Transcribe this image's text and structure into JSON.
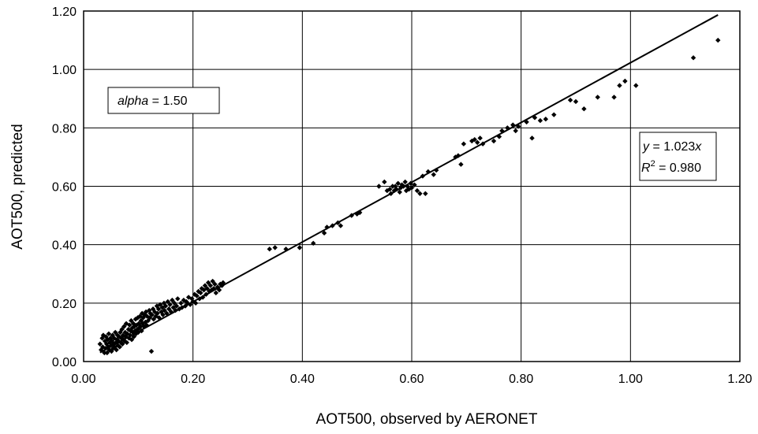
{
  "chart_data": {
    "type": "scatter",
    "title": "",
    "xlabel": "AOT500, observed by AERONET",
    "ylabel": "AOT500, predicted",
    "xlim": [
      0,
      1.2
    ],
    "ylim": [
      0,
      1.2
    ],
    "x_ticks": [
      "0.00",
      "0.20",
      "0.40",
      "0.60",
      "0.80",
      "1.00",
      "1.20"
    ],
    "y_ticks": [
      "0.00",
      "0.20",
      "0.40",
      "0.60",
      "0.80",
      "1.00",
      "1.20"
    ],
    "grid": true,
    "annotations": {
      "alpha_label": "alpha",
      "alpha_value": " = 1.50",
      "eq_y": "y",
      "eq_rest": " = 1.023",
      "eq_x": "x",
      "r2_r": "R",
      "r2_exp": "2",
      "r2_rest": " = 0.980"
    },
    "fit_line": {
      "slope": 1.023,
      "intercept": 0,
      "r2": 0.98,
      "x_range": [
        0.03,
        1.16
      ]
    },
    "points": [
      [
        0.03,
        0.06
      ],
      [
        0.032,
        0.04
      ],
      [
        0.034,
        0.08
      ],
      [
        0.035,
        0.05
      ],
      [
        0.036,
        0.09
      ],
      [
        0.038,
        0.03
      ],
      [
        0.039,
        0.07
      ],
      [
        0.04,
        0.045
      ],
      [
        0.041,
        0.085
      ],
      [
        0.042,
        0.06
      ],
      [
        0.043,
        0.03
      ],
      [
        0.044,
        0.075
      ],
      [
        0.045,
        0.05
      ],
      [
        0.046,
        0.095
      ],
      [
        0.047,
        0.04
      ],
      [
        0.048,
        0.065
      ],
      [
        0.049,
        0.08
      ],
      [
        0.05,
        0.055
      ],
      [
        0.051,
        0.035
      ],
      [
        0.052,
        0.07
      ],
      [
        0.053,
        0.09
      ],
      [
        0.054,
        0.045
      ],
      [
        0.055,
        0.06
      ],
      [
        0.056,
        0.08
      ],
      [
        0.057,
        0.05
      ],
      [
        0.058,
        0.1
      ],
      [
        0.059,
        0.065
      ],
      [
        0.06,
        0.04
      ],
      [
        0.061,
        0.075
      ],
      [
        0.062,
        0.09
      ],
      [
        0.063,
        0.055
      ],
      [
        0.064,
        0.07
      ],
      [
        0.065,
        0.085
      ],
      [
        0.066,
        0.05
      ],
      [
        0.067,
        0.1
      ],
      [
        0.068,
        0.065
      ],
      [
        0.069,
        0.08
      ],
      [
        0.07,
        0.11
      ],
      [
        0.071,
        0.06
      ],
      [
        0.072,
        0.09
      ],
      [
        0.073,
        0.075
      ],
      [
        0.074,
        0.12
      ],
      [
        0.075,
        0.07
      ],
      [
        0.076,
        0.1
      ],
      [
        0.077,
        0.085
      ],
      [
        0.078,
        0.13
      ],
      [
        0.079,
        0.065
      ],
      [
        0.08,
        0.095
      ],
      [
        0.082,
        0.11
      ],
      [
        0.083,
        0.08
      ],
      [
        0.084,
        0.125
      ],
      [
        0.085,
        0.09
      ],
      [
        0.086,
        0.105
      ],
      [
        0.087,
        0.14
      ],
      [
        0.088,
        0.075
      ],
      [
        0.089,
        0.115
      ],
      [
        0.09,
        0.1
      ],
      [
        0.091,
        0.13
      ],
      [
        0.092,
        0.085
      ],
      [
        0.093,
        0.12
      ],
      [
        0.094,
        0.105
      ],
      [
        0.095,
        0.145
      ],
      [
        0.096,
        0.095
      ],
      [
        0.097,
        0.125
      ],
      [
        0.098,
        0.11
      ],
      [
        0.099,
        0.15
      ],
      [
        0.1,
        0.1
      ],
      [
        0.101,
        0.13
      ],
      [
        0.102,
        0.115
      ],
      [
        0.103,
        0.155
      ],
      [
        0.104,
        0.12
      ],
      [
        0.105,
        0.14
      ],
      [
        0.106,
        0.105
      ],
      [
        0.107,
        0.165
      ],
      [
        0.108,
        0.13
      ],
      [
        0.109,
        0.15
      ],
      [
        0.11,
        0.12
      ],
      [
        0.112,
        0.16
      ],
      [
        0.113,
        0.135
      ],
      [
        0.114,
        0.17
      ],
      [
        0.115,
        0.125
      ],
      [
        0.116,
        0.155
      ],
      [
        0.118,
        0.14
      ],
      [
        0.12,
        0.175
      ],
      [
        0.121,
        0.15
      ],
      [
        0.122,
        0.165
      ],
      [
        0.124,
        0.035
      ],
      [
        0.125,
        0.16
      ],
      [
        0.127,
        0.18
      ],
      [
        0.128,
        0.145
      ],
      [
        0.13,
        0.17
      ],
      [
        0.132,
        0.155
      ],
      [
        0.134,
        0.19
      ],
      [
        0.135,
        0.165
      ],
      [
        0.137,
        0.18
      ],
      [
        0.138,
        0.15
      ],
      [
        0.14,
        0.195
      ],
      [
        0.142,
        0.17
      ],
      [
        0.144,
        0.185
      ],
      [
        0.145,
        0.16
      ],
      [
        0.147,
        0.2
      ],
      [
        0.148,
        0.175
      ],
      [
        0.15,
        0.19
      ],
      [
        0.152,
        0.165
      ],
      [
        0.154,
        0.205
      ],
      [
        0.156,
        0.18
      ],
      [
        0.158,
        0.195
      ],
      [
        0.16,
        0.17
      ],
      [
        0.162,
        0.21
      ],
      [
        0.164,
        0.185
      ],
      [
        0.166,
        0.2
      ],
      [
        0.168,
        0.175
      ],
      [
        0.17,
        0.19
      ],
      [
        0.172,
        0.215
      ],
      [
        0.175,
        0.18
      ],
      [
        0.178,
        0.2
      ],
      [
        0.18,
        0.185
      ],
      [
        0.183,
        0.21
      ],
      [
        0.186,
        0.19
      ],
      [
        0.188,
        0.205
      ],
      [
        0.19,
        0.2
      ],
      [
        0.192,
        0.22
      ],
      [
        0.195,
        0.195
      ],
      [
        0.198,
        0.215
      ],
      [
        0.2,
        0.205
      ],
      [
        0.203,
        0.23
      ],
      [
        0.205,
        0.2
      ],
      [
        0.207,
        0.225
      ],
      [
        0.21,
        0.24
      ],
      [
        0.212,
        0.215
      ],
      [
        0.214,
        0.235
      ],
      [
        0.216,
        0.25
      ],
      [
        0.218,
        0.22
      ],
      [
        0.22,
        0.245
      ],
      [
        0.222,
        0.26
      ],
      [
        0.224,
        0.23
      ],
      [
        0.226,
        0.25
      ],
      [
        0.228,
        0.27
      ],
      [
        0.23,
        0.24
      ],
      [
        0.232,
        0.26
      ],
      [
        0.234,
        0.245
      ],
      [
        0.236,
        0.275
      ],
      [
        0.238,
        0.25
      ],
      [
        0.24,
        0.265
      ],
      [
        0.242,
        0.235
      ],
      [
        0.245,
        0.255
      ],
      [
        0.248,
        0.245
      ],
      [
        0.25,
        0.265
      ],
      [
        0.253,
        0.26
      ],
      [
        0.255,
        0.27
      ],
      [
        0.34,
        0.385
      ],
      [
        0.35,
        0.39
      ],
      [
        0.37,
        0.385
      ],
      [
        0.395,
        0.39
      ],
      [
        0.42,
        0.405
      ],
      [
        0.44,
        0.44
      ],
      [
        0.445,
        0.46
      ],
      [
        0.455,
        0.465
      ],
      [
        0.465,
        0.475
      ],
      [
        0.47,
        0.465
      ],
      [
        0.49,
        0.5
      ],
      [
        0.5,
        0.505
      ],
      [
        0.505,
        0.51
      ],
      [
        0.54,
        0.6
      ],
      [
        0.55,
        0.615
      ],
      [
        0.555,
        0.585
      ],
      [
        0.56,
        0.59
      ],
      [
        0.562,
        0.575
      ],
      [
        0.565,
        0.6
      ],
      [
        0.568,
        0.585
      ],
      [
        0.57,
        0.6
      ],
      [
        0.572,
        0.59
      ],
      [
        0.575,
        0.61
      ],
      [
        0.578,
        0.58
      ],
      [
        0.58,
        0.595
      ],
      [
        0.582,
        0.605
      ],
      [
        0.585,
        0.6
      ],
      [
        0.588,
        0.615
      ],
      [
        0.59,
        0.585
      ],
      [
        0.592,
        0.6
      ],
      [
        0.595,
        0.59
      ],
      [
        0.598,
        0.61
      ],
      [
        0.6,
        0.595
      ],
      [
        0.605,
        0.605
      ],
      [
        0.61,
        0.585
      ],
      [
        0.615,
        0.575
      ],
      [
        0.62,
        0.635
      ],
      [
        0.625,
        0.575
      ],
      [
        0.63,
        0.65
      ],
      [
        0.64,
        0.64
      ],
      [
        0.645,
        0.655
      ],
      [
        0.68,
        0.7
      ],
      [
        0.685,
        0.705
      ],
      [
        0.69,
        0.675
      ],
      [
        0.695,
        0.745
      ],
      [
        0.71,
        0.755
      ],
      [
        0.715,
        0.76
      ],
      [
        0.72,
        0.75
      ],
      [
        0.725,
        0.765
      ],
      [
        0.73,
        0.745
      ],
      [
        0.75,
        0.755
      ],
      [
        0.76,
        0.77
      ],
      [
        0.765,
        0.79
      ],
      [
        0.775,
        0.8
      ],
      [
        0.785,
        0.81
      ],
      [
        0.79,
        0.79
      ],
      [
        0.795,
        0.805
      ],
      [
        0.81,
        0.82
      ],
      [
        0.82,
        0.765
      ],
      [
        0.825,
        0.835
      ],
      [
        0.835,
        0.825
      ],
      [
        0.845,
        0.83
      ],
      [
        0.86,
        0.845
      ],
      [
        0.89,
        0.895
      ],
      [
        0.9,
        0.89
      ],
      [
        0.915,
        0.865
      ],
      [
        0.94,
        0.905
      ],
      [
        0.97,
        0.905
      ],
      [
        0.98,
        0.945
      ],
      [
        0.99,
        0.96
      ],
      [
        1.01,
        0.945
      ],
      [
        1.115,
        1.04
      ],
      [
        1.16,
        1.1
      ]
    ]
  }
}
